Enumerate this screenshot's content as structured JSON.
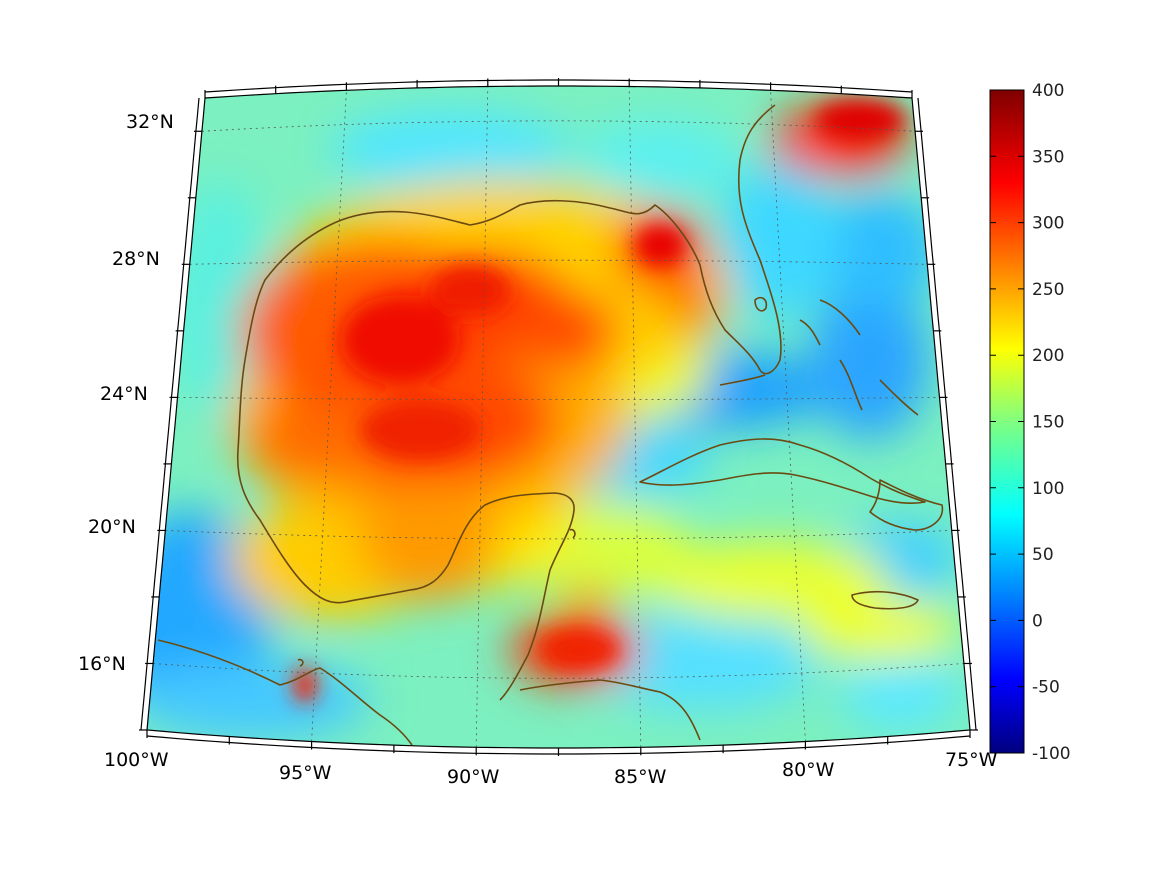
{
  "map": {
    "projection": "conic",
    "lon_range": [
      -100,
      -75
    ],
    "lat_range": [
      14,
      33
    ],
    "lon_ticks": [
      "100°W",
      "95°W",
      "90°W",
      "85°W",
      "80°W",
      "75°W"
    ],
    "lat_ticks": [
      "16°N",
      "20°N",
      "24°N",
      "28°N",
      "32°N"
    ],
    "grid": true,
    "coastline_color": "#6b4a12",
    "frame": "boxed ticks"
  },
  "colorbar": {
    "colormap": "jet",
    "min": -100,
    "max": 400,
    "tick_labels": [
      "400",
      "350",
      "300",
      "250",
      "200",
      "150",
      "100",
      "50",
      "0",
      "-50",
      "-100"
    ],
    "placement": "right"
  },
  "field": {
    "background_value": 120,
    "features": [
      {
        "region": "central Gulf of Mexico",
        "value": 330
      },
      {
        "region": "western Gulf off Texas",
        "value": 300
      },
      {
        "region": "NE Gulf off Florida",
        "value": 330
      },
      {
        "region": "Bay of Campeche",
        "value": 220
      },
      {
        "region": "Honduras / Guatemala",
        "value": 320
      },
      {
        "region": "Georgia / Carolina coast",
        "value": 320
      },
      {
        "region": "Straits of Florida",
        "value": 80
      },
      {
        "region": "Caribbean south",
        "value": 180
      },
      {
        "region": "Gulf of Tehuantepec",
        "value": 330
      },
      {
        "region": "Pacific SW corner",
        "value": 70
      }
    ]
  }
}
